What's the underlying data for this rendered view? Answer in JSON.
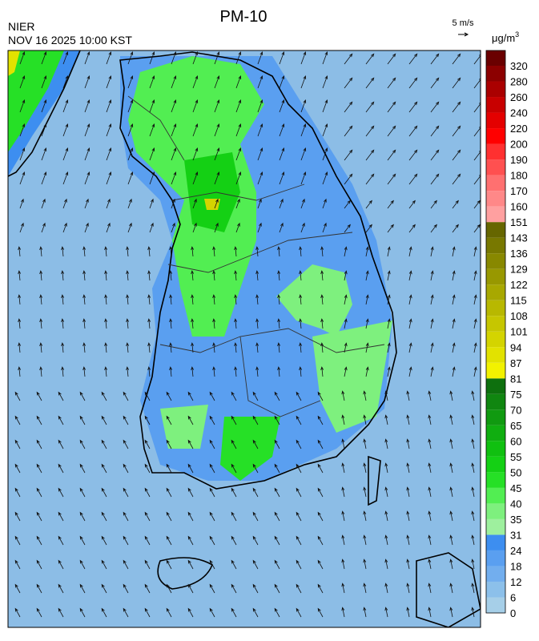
{
  "title": "PM-10",
  "source": "NIER",
  "timestamp": "NOV 16 2025 10:00 KST",
  "wind_scale": "5 m/s",
  "unit": {
    "base": "μg/m",
    "exponent": "3"
  },
  "colorbar": {
    "labels": [
      0,
      6,
      12,
      18,
      24,
      31,
      35,
      40,
      45,
      50,
      55,
      60,
      65,
      70,
      75,
      81,
      87,
      94,
      101,
      108,
      115,
      122,
      129,
      136,
      143,
      151,
      160,
      170,
      180,
      190,
      200,
      220,
      240,
      260,
      280,
      320
    ],
    "colors": [
      "#a6cfe8",
      "#8cc0ea",
      "#72aeee",
      "#5a9ff0",
      "#3d8ef0",
      "#9ef09e",
      "#7ef07e",
      "#52ee52",
      "#26e026",
      "#14d014",
      "#10c010",
      "#10ae10",
      "#109a10",
      "#108610",
      "#0e700e",
      "#f2f200",
      "#e2e200",
      "#d4d400",
      "#c6c600",
      "#b8b800",
      "#a8a800",
      "#989800",
      "#888800",
      "#787800",
      "#666600",
      "#ffa0a0",
      "#ff8888",
      "#ff7070",
      "#ff5050",
      "#ff3030",
      "#ff0000",
      "#e40000",
      "#c80000",
      "#aa0000",
      "#8c0000",
      "#6a0000"
    ]
  }
}
